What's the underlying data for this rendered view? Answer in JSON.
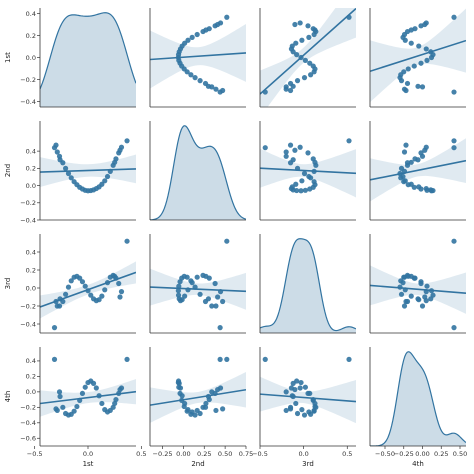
{
  "chart_data": {
    "type": "scatter",
    "subtype": "pairplot",
    "variables": [
      "1st",
      "2nd",
      "3rd",
      "4th"
    ],
    "diagonal": "kde",
    "off_diagonal": "scatter with linear regression line and confidence band",
    "colors": {
      "points": "#3274a1",
      "band": "#3274a1",
      "axis": "#333333"
    },
    "ranges": {
      "1st": [
        -0.45,
        0.45
      ],
      "2nd": [
        -0.4,
        0.75
      ],
      "3rd": [
        -0.5,
        0.6
      ],
      "4th": [
        -0.7,
        0.58
      ]
    },
    "ticks": {
      "1st": [
        -0.4,
        -0.2,
        0.0,
        0.2,
        0.4
      ],
      "2nd": [
        -0.4,
        -0.2,
        0.0,
        0.2,
        0.4
      ],
      "3rd": [
        -0.4,
        -0.2,
        0.0,
        0.2,
        0.4
      ],
      "4th": [
        -0.6,
        -0.4,
        -0.2,
        0.0,
        0.2,
        0.4
      ]
    },
    "x_ticks": {
      "1st": [
        -0.5,
        0.0,
        0.5
      ],
      "2nd": [
        -0.25,
        0.0,
        0.25,
        0.5,
        0.75
      ],
      "3rd": [
        -0.5,
        0.0,
        0.5
      ],
      "4th": [
        -0.5,
        -0.25,
        0.0,
        0.25,
        0.5
      ]
    },
    "tick_labels": {
      "1st": [
        "−0.4",
        "−0.2",
        "0.0",
        "0.2",
        "0.4"
      ],
      "2nd": [
        "−0.4",
        "−0.2",
        "0.0",
        "0.2",
        "0.4"
      ],
      "3rd": [
        "−0.4",
        "−0.2",
        "0.0",
        "0.2",
        "0.4"
      ],
      "4th": [
        "−0.6",
        "−0.4",
        "−0.2",
        "0.0",
        "0.2",
        "0.4"
      ]
    },
    "x_tick_labels": {
      "1st": [
        "−0.5",
        "0.0",
        "0.5"
      ],
      "2nd": [
        "−0.25",
        "0.00",
        "0.25",
        "0.50",
        "0.75"
      ],
      "3rd": [
        "−0.5",
        "0.0",
        "0.5"
      ],
      "4th": [
        "−0.50",
        "−0.25",
        "0.00",
        "0.25",
        "0.50"
      ]
    },
    "data": {
      "t_count": 30,
      "1st": [
        0.366,
        -0.314,
        -0.267,
        -0.236,
        -0.21,
        -0.183,
        -0.157,
        -0.13,
        -0.104,
        -0.078,
        -0.052,
        -0.026,
        0.0,
        0.026,
        0.052,
        0.078,
        0.104,
        0.13,
        0.157,
        0.183,
        0.209,
        0.236,
        0.262,
        0.288,
        0.314,
        -0.288,
        -0.262,
        0.25,
        0.3,
        -0.3
      ],
      "2nd": [
        0.52,
        0.44,
        0.34,
        0.265,
        0.2,
        0.14,
        0.09,
        0.045,
        0.01,
        -0.02,
        -0.04,
        -0.055,
        -0.06,
        -0.058,
        -0.05,
        -0.035,
        -0.015,
        0.015,
        0.055,
        0.105,
        0.165,
        0.235,
        0.31,
        0.38,
        0.445,
        0.39,
        0.3,
        0.27,
        0.41,
        0.47
      ],
      "3rd": [
        0.52,
        -0.44,
        -0.2,
        -0.15,
        -0.07,
        0.01,
        0.08,
        0.12,
        0.13,
        0.11,
        0.07,
        0.02,
        -0.03,
        -0.08,
        -0.12,
        -0.14,
        -0.13,
        -0.09,
        -0.02,
        0.06,
        0.12,
        0.14,
        0.11,
        0.05,
        -0.04,
        -0.2,
        -0.12,
        0.13,
        -0.1,
        -0.15
      ],
      "4th": [
        0.42,
        0.42,
        0.0,
        -0.2,
        -0.28,
        -0.3,
        -0.29,
        -0.25,
        -0.19,
        -0.11,
        -0.02,
        0.06,
        0.12,
        0.14,
        0.11,
        0.05,
        -0.05,
        -0.15,
        -0.23,
        -0.26,
        -0.24,
        -0.2,
        -0.1,
        -0.02,
        0.05,
        -0.24,
        -0.06,
        -0.15,
        0.03,
        -0.22
      ]
    }
  }
}
